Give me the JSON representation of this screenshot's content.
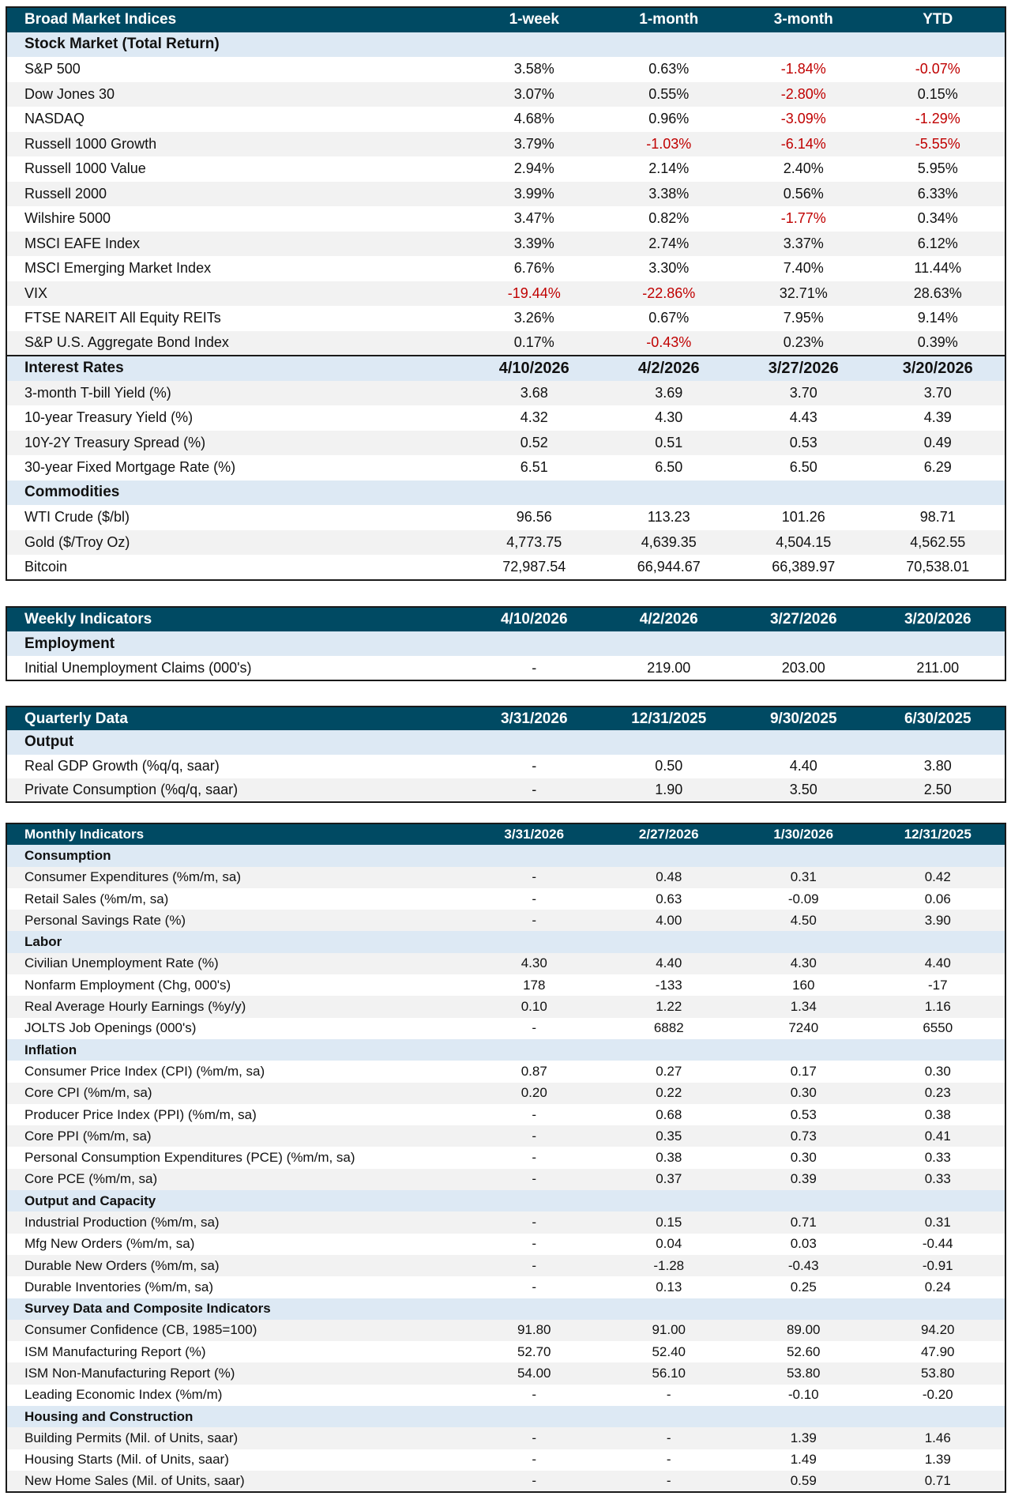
{
  "colors": {
    "header_bg": "#004a63",
    "section_bg": "#dde9f4",
    "shade_bg": "#f2f2f2",
    "negative": "#c00000"
  },
  "tables": [
    {
      "title": "Broad Market Indices",
      "columns": [
        "1-week",
        "1-month",
        "3-month",
        "YTD"
      ],
      "red_negatives": true,
      "sections": [
        {
          "title": "Stock Market (Total Return)",
          "columns": [],
          "shade_first": false,
          "rows": [
            {
              "label": "S&P 500",
              "values": [
                "3.58%",
                "0.63%",
                "-1.84%",
                "-0.07%"
              ]
            },
            {
              "label": "Dow Jones 30",
              "values": [
                "3.07%",
                "0.55%",
                "-2.80%",
                "0.15%"
              ]
            },
            {
              "label": "NASDAQ",
              "values": [
                "4.68%",
                "0.96%",
                "-3.09%",
                "-1.29%"
              ]
            },
            {
              "label": "Russell 1000 Growth",
              "values": [
                "3.79%",
                "-1.03%",
                "-6.14%",
                "-5.55%"
              ]
            },
            {
              "label": "Russell 1000 Value",
              "values": [
                "2.94%",
                "2.14%",
                "2.40%",
                "5.95%"
              ]
            },
            {
              "label": "Russell 2000",
              "values": [
                "3.99%",
                "3.38%",
                "0.56%",
                "6.33%"
              ]
            },
            {
              "label": "Wilshire 5000",
              "values": [
                "3.47%",
                "0.82%",
                "-1.77%",
                "0.34%"
              ]
            },
            {
              "label": "MSCI EAFE  Index",
              "values": [
                "3.39%",
                "2.74%",
                "3.37%",
                "6.12%"
              ]
            },
            {
              "label": "MSCI Emerging Market Index",
              "values": [
                "6.76%",
                "3.30%",
                "7.40%",
                "11.44%"
              ]
            },
            {
              "label": "VIX",
              "values": [
                "-19.44%",
                "-22.86%",
                "32.71%",
                "28.63%"
              ]
            },
            {
              "label": "FTSE NAREIT All Equity REITs",
              "values": [
                "3.26%",
                "0.67%",
                "7.95%",
                "9.14%"
              ]
            },
            {
              "label": "S&P U.S. Aggregate Bond Index",
              "values": [
                "0.17%",
                "-0.43%",
                "0.23%",
                "0.39%"
              ]
            }
          ]
        },
        {
          "title": "Interest Rates",
          "columns": [
            "4/10/2026",
            "4/2/2026",
            "3/27/2026",
            "3/20/2026"
          ],
          "separator": true,
          "shade_first": true,
          "rows": [
            {
              "label": "3-month T-bill Yield (%)",
              "values": [
                "3.68",
                "3.69",
                "3.70",
                "3.70"
              ]
            },
            {
              "label": "10-year Treasury Yield (%)",
              "values": [
                "4.32",
                "4.30",
                "4.43",
                "4.39"
              ]
            },
            {
              "label": "10Y-2Y Treasury Spread (%)",
              "values": [
                "0.52",
                "0.51",
                "0.53",
                "0.49"
              ]
            },
            {
              "label": "30-year Fixed Mortgage Rate (%)",
              "values": [
                "6.51",
                "6.50",
                "6.50",
                "6.29"
              ]
            }
          ]
        },
        {
          "title": "Commodities",
          "columns": [],
          "shade_first": false,
          "rows": [
            {
              "label": "WTI Crude ($/bl)",
              "values": [
                "96.56",
                "113.23",
                "101.26",
                "98.71"
              ]
            },
            {
              "label": "Gold ($/Troy Oz)",
              "values": [
                "4,773.75",
                "4,639.35",
                "4,504.15",
                "4,562.55"
              ]
            },
            {
              "label": "Bitcoin",
              "values": [
                "72,987.54",
                "66,944.67",
                "66,389.97",
                "70,538.01"
              ]
            }
          ]
        }
      ]
    },
    {
      "title": "Weekly Indicators",
      "columns": [
        "4/10/2026",
        "4/2/2026",
        "3/27/2026",
        "3/20/2026"
      ],
      "red_negatives": false,
      "sections": [
        {
          "title": "Employment",
          "columns": [],
          "shade_first": false,
          "rows": [
            {
              "label": "Initial Unemployment Claims (000's)",
              "values": [
                "-",
                "219.00",
                "203.00",
                "211.00"
              ]
            }
          ]
        }
      ]
    },
    {
      "title": "Quarterly Data",
      "columns": [
        "3/31/2026",
        "12/31/2025",
        "9/30/2025",
        "6/30/2025"
      ],
      "red_negatives": false,
      "sections": [
        {
          "title": "Output",
          "columns": [],
          "shade_first": false,
          "rows": [
            {
              "label": "Real GDP Growth (%q/q, saar)",
              "values": [
                "-",
                "0.50",
                "4.40",
                "3.80"
              ]
            },
            {
              "label": "Private Consumption (%q/q, saar)",
              "values": [
                "-",
                "1.90",
                "3.50",
                "2.50"
              ]
            }
          ]
        }
      ]
    },
    {
      "title": "Monthly Indicators",
      "columns": [
        "3/31/2026",
        "2/27/2026",
        "1/30/2026",
        "12/31/2025"
      ],
      "red_negatives": false,
      "sections": [
        {
          "title": "Consumption",
          "columns": [],
          "shade_first": true,
          "rows": [
            {
              "label": "Consumer Expenditures (%m/m, sa)",
              "values": [
                "-",
                "0.48",
                "0.31",
                "0.42"
              ]
            },
            {
              "label": "Retail Sales (%m/m, sa)",
              "values": [
                "-",
                "0.63",
                "-0.09",
                "0.06"
              ]
            },
            {
              "label": "Personal Savings Rate (%)",
              "values": [
                "-",
                "4.00",
                "4.50",
                "3.90"
              ]
            }
          ]
        },
        {
          "title": "Labor",
          "columns": [],
          "shade_first": true,
          "rows": [
            {
              "label": "Civilian Unemployment Rate (%)",
              "values": [
                "4.30",
                "4.40",
                "4.30",
                "4.40"
              ]
            },
            {
              "label": "Nonfarm Employment (Chg, 000's)",
              "values": [
                "178",
                "-133",
                "160",
                "-17"
              ]
            },
            {
              "label": "Real Average Hourly Earnings (%y/y)",
              "values": [
                "0.10",
                "1.22",
                "1.34",
                "1.16"
              ]
            },
            {
              "label": "JOLTS Job Openings (000's)",
              "values": [
                "-",
                "6882",
                "7240",
                "6550"
              ]
            }
          ]
        },
        {
          "title": "Inflation",
          "columns": [],
          "shade_first": false,
          "rows": [
            {
              "label": "Consumer Price Index (CPI) (%m/m, sa)",
              "values": [
                "0.87",
                "0.27",
                "0.17",
                "0.30"
              ]
            },
            {
              "label": "Core CPI (%m/m, sa)",
              "values": [
                "0.20",
                "0.22",
                "0.30",
                "0.23"
              ]
            },
            {
              "label": "Producer Price Index (PPI) (%m/m, sa)",
              "values": [
                "-",
                "0.68",
                "0.53",
                "0.38"
              ]
            },
            {
              "label": "Core PPI (%m/m, sa)",
              "values": [
                "-",
                "0.35",
                "0.73",
                "0.41"
              ]
            },
            {
              "label": "Personal Consumption Expenditures (PCE) (%m/m, sa)",
              "values": [
                "-",
                "0.38",
                "0.30",
                "0.33"
              ]
            },
            {
              "label": "Core PCE (%m/m, sa)",
              "values": [
                "-",
                "0.37",
                "0.39",
                "0.33"
              ]
            }
          ]
        },
        {
          "title": "Output and Capacity",
          "columns": [],
          "shade_first": true,
          "rows": [
            {
              "label": "Industrial Production (%m/m, sa)",
              "values": [
                "-",
                "0.15",
                "0.71",
                "0.31"
              ]
            },
            {
              "label": "Mfg New Orders (%m/m, sa)",
              "values": [
                "-",
                "0.04",
                "0.03",
                "-0.44"
              ]
            },
            {
              "label": "Durable New Orders (%m/m, sa)",
              "values": [
                "-",
                "-1.28",
                "-0.43",
                "-0.91"
              ]
            },
            {
              "label": "Durable Inventories (%m/m, sa)",
              "values": [
                "-",
                "0.13",
                "0.25",
                "0.24"
              ]
            }
          ]
        },
        {
          "title": "Survey Data and Composite Indicators",
          "columns": [],
          "shade_first": true,
          "rows": [
            {
              "label": "Consumer Confidence (CB, 1985=100)",
              "values": [
                "91.80",
                "91.00",
                "89.00",
                "94.20"
              ]
            },
            {
              "label": "ISM Manufacturing Report (%)",
              "values": [
                "52.70",
                "52.40",
                "52.60",
                "47.90"
              ]
            },
            {
              "label": "ISM Non-Manufacturing Report (%)",
              "values": [
                "54.00",
                "56.10",
                "53.80",
                "53.80"
              ]
            },
            {
              "label": "Leading Economic Index (%m/m)",
              "values": [
                "-",
                "-",
                "-0.10",
                "-0.20"
              ]
            }
          ]
        },
        {
          "title": "Housing and Construction",
          "columns": [],
          "shade_first": true,
          "rows": [
            {
              "label": "Building Permits (Mil. of Units, saar)",
              "values": [
                "-",
                "-",
                "1.39",
                "1.46"
              ]
            },
            {
              "label": "Housing Starts (Mil. of Units, saar)",
              "values": [
                "-",
                "-",
                "1.49",
                "1.39"
              ]
            },
            {
              "label": "New Home Sales (Mil. of Units, saar)",
              "values": [
                "-",
                "-",
                "0.59",
                "0.71"
              ]
            }
          ]
        }
      ]
    }
  ]
}
